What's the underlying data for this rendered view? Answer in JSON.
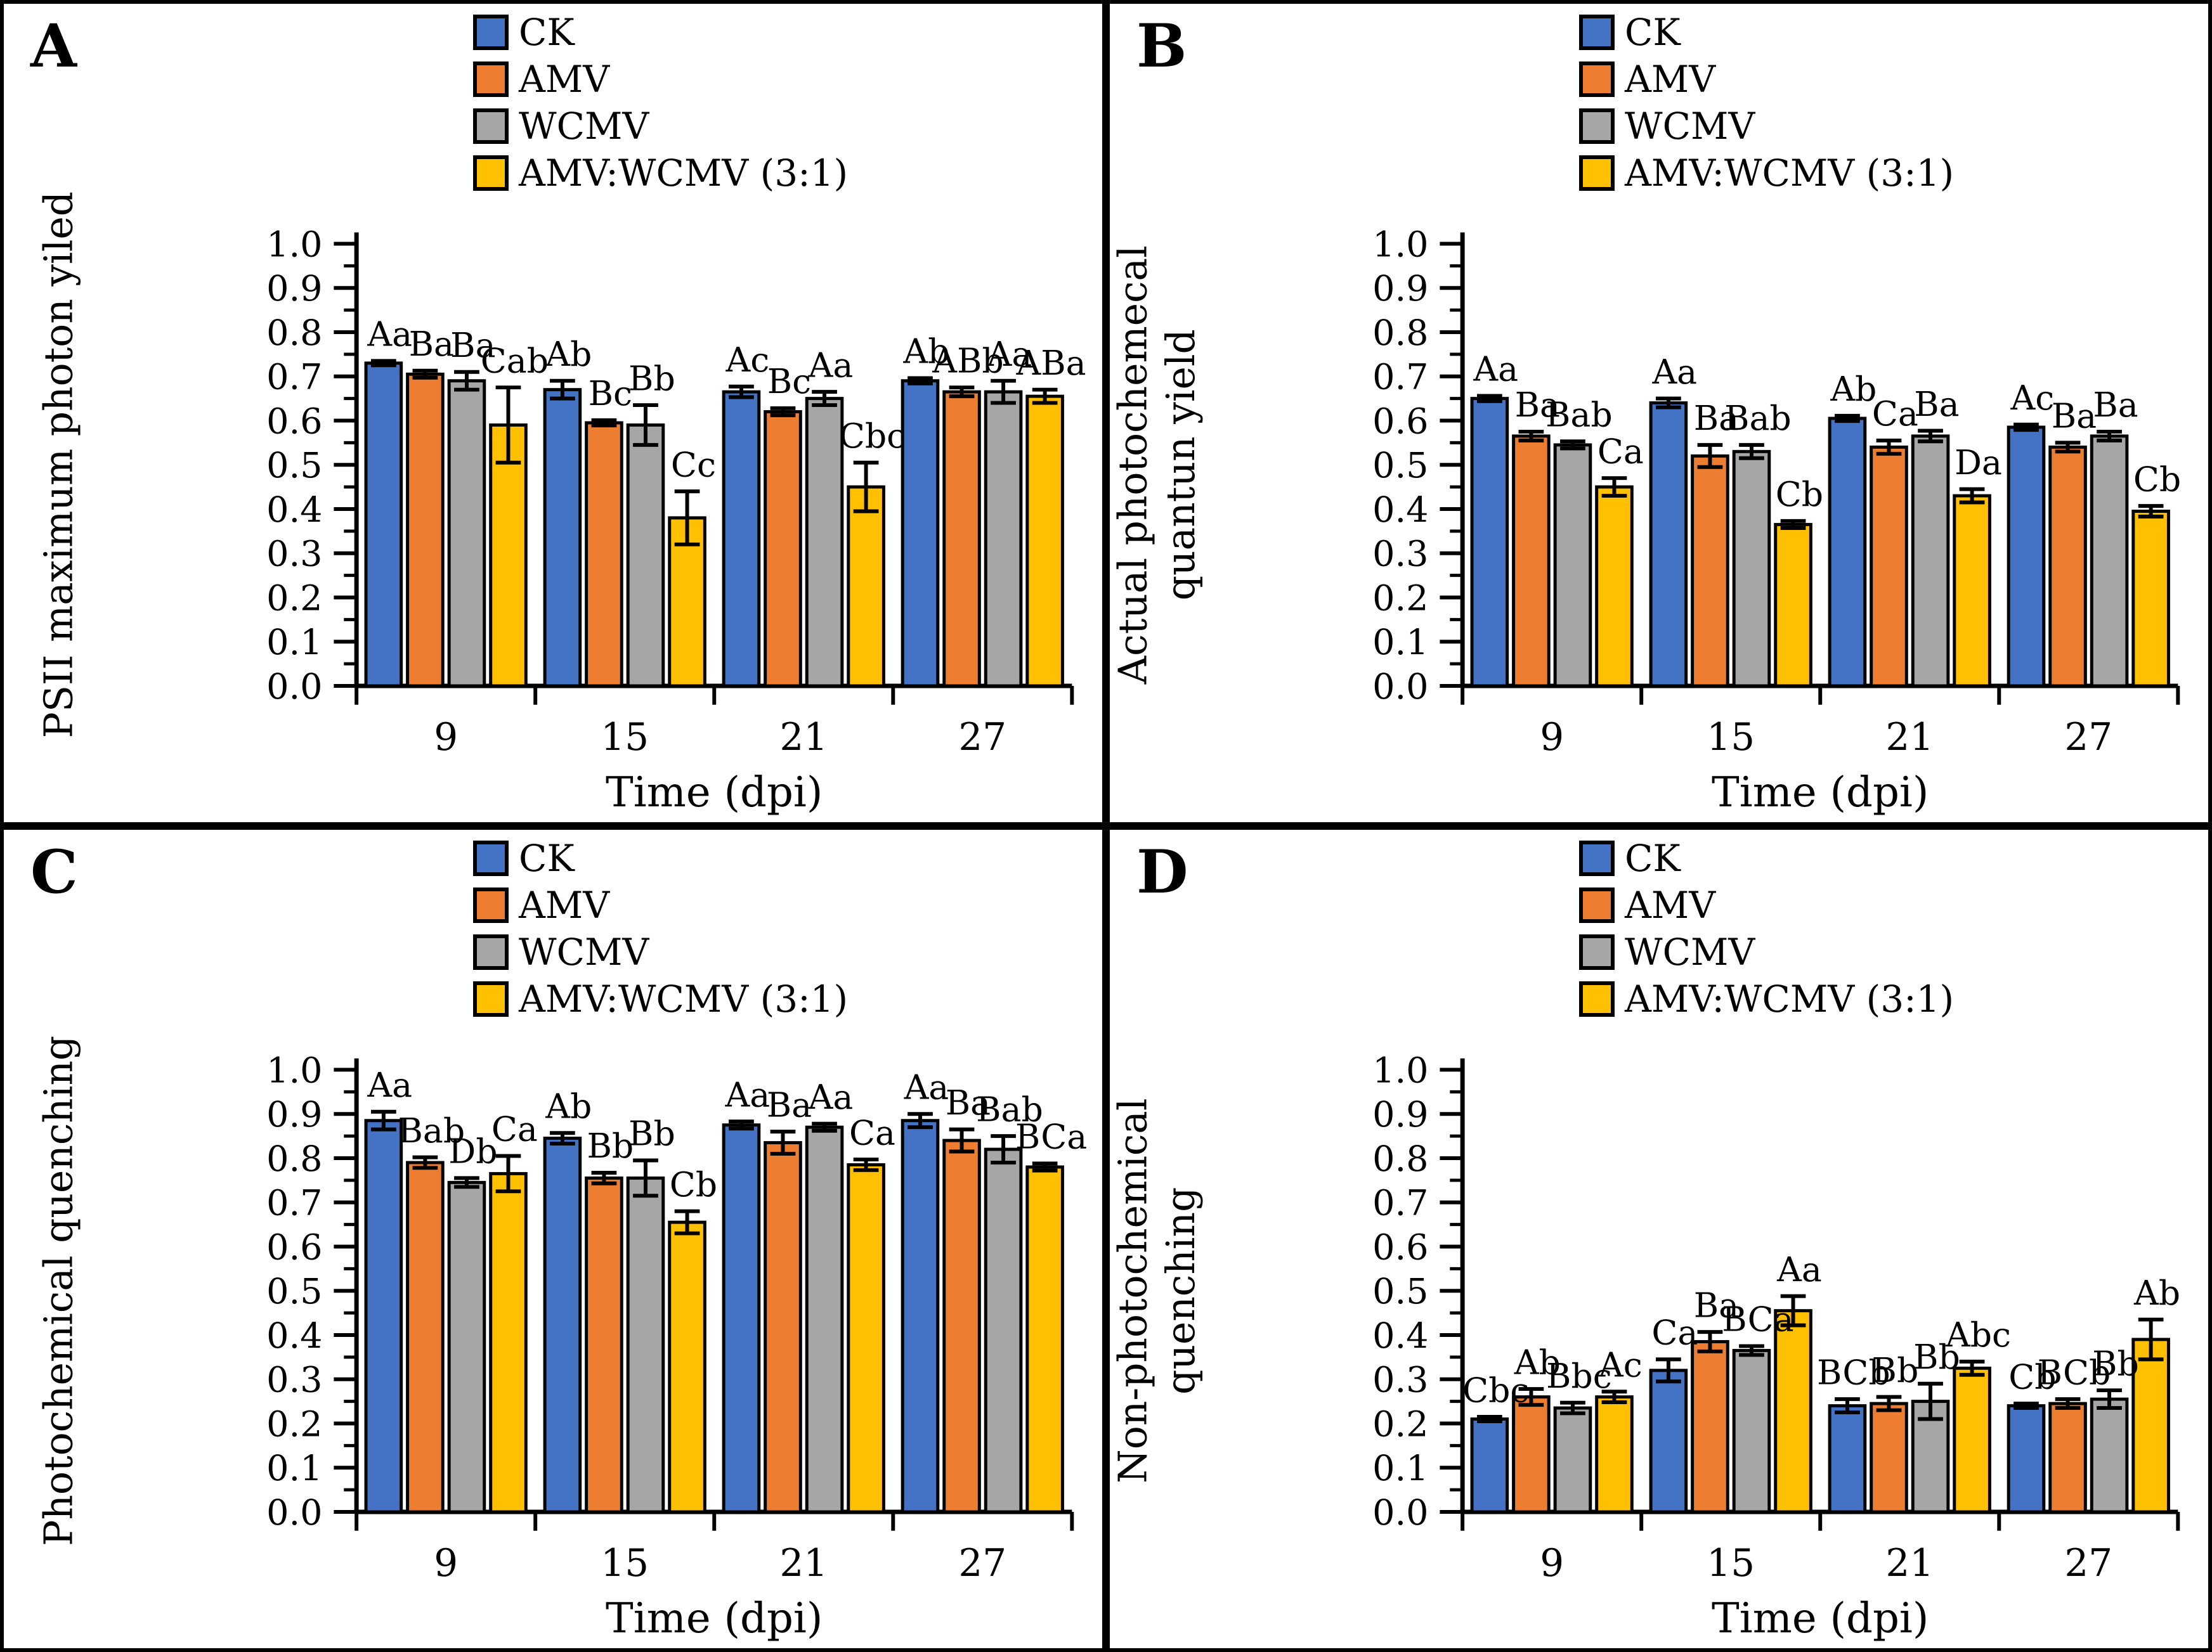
{
  "figure": {
    "x_axis_title": "Time (dpi)",
    "x_tick_labels": [
      "9",
      "15",
      "21",
      "27"
    ],
    "y_tick_labels": [
      "0.0",
      "0.1",
      "0.2",
      "0.3",
      "0.4",
      "0.5",
      "0.6",
      "0.7",
      "0.8",
      "0.9",
      "1.0"
    ],
    "legend": {
      "items": [
        {
          "label": "CK",
          "color": "#4472C4"
        },
        {
          "label": "AMV",
          "color": "#ED7D31"
        },
        {
          "label": "WCMV",
          "color": "#A6A6A6"
        },
        {
          "label": "AMV:WCMV (3:1)",
          "color": "#FFC000"
        }
      ]
    }
  },
  "chart_data": [
    {
      "type": "bar",
      "panel_letter": "A",
      "ylabel_lines": [
        "PSII maximum photon yiled"
      ],
      "xlabel": "Time (dpi)",
      "categories": [
        "9",
        "15",
        "21",
        "27"
      ],
      "ylim": [
        0.0,
        1.0
      ],
      "y_tick_step": 0.1,
      "grid": false,
      "legend_position": "top-center",
      "series": [
        {
          "name": "CK",
          "color": "#4472C4",
          "values": [
            0.73,
            0.67,
            0.665,
            0.69
          ],
          "errors": [
            0.005,
            0.02,
            0.012,
            0.006
          ],
          "sig_letters": [
            "Aa",
            "Ab",
            "Ac",
            "Ab"
          ]
        },
        {
          "name": "AMV",
          "color": "#ED7D31",
          "values": [
            0.705,
            0.595,
            0.62,
            0.665
          ],
          "errors": [
            0.008,
            0.006,
            0.008,
            0.01
          ],
          "sig_letters": [
            "Ba",
            "Bc",
            "Bc",
            "ABb"
          ]
        },
        {
          "name": "WCMV",
          "color": "#A6A6A6",
          "values": [
            0.69,
            0.59,
            0.65,
            0.665
          ],
          "errors": [
            0.02,
            0.045,
            0.015,
            0.025
          ],
          "sig_letters": [
            "Ba",
            "Bb",
            "Aa",
            "Aa"
          ]
        },
        {
          "name": "AMV:WCMV (3:1)",
          "color": "#FFC000",
          "values": [
            0.59,
            0.38,
            0.45,
            0.655
          ],
          "errors": [
            0.085,
            0.06,
            0.055,
            0.015
          ],
          "sig_letters": [
            "Cab",
            "Cc",
            "Cbc",
            "ABa"
          ]
        }
      ]
    },
    {
      "type": "bar",
      "panel_letter": "B",
      "ylabel_lines": [
        "Actual photochemecal",
        "quantun yield"
      ],
      "xlabel": "Time (dpi)",
      "categories": [
        "9",
        "15",
        "21",
        "27"
      ],
      "ylim": [
        0.0,
        1.0
      ],
      "y_tick_step": 0.1,
      "grid": false,
      "legend_position": "top-center",
      "series": [
        {
          "name": "CK",
          "color": "#4472C4",
          "values": [
            0.65,
            0.64,
            0.605,
            0.585
          ],
          "errors": [
            0.006,
            0.01,
            0.006,
            0.006
          ],
          "sig_letters": [
            "Aa",
            "Aa",
            "Ab",
            "Ac"
          ]
        },
        {
          "name": "AMV",
          "color": "#ED7D31",
          "values": [
            0.565,
            0.52,
            0.54,
            0.54
          ],
          "errors": [
            0.01,
            0.025,
            0.015,
            0.01
          ],
          "sig_letters": [
            "Ba",
            "Ba",
            "Ca",
            "Ba"
          ]
        },
        {
          "name": "WCMV",
          "color": "#A6A6A6",
          "values": [
            0.545,
            0.53,
            0.565,
            0.565
          ],
          "errors": [
            0.008,
            0.015,
            0.012,
            0.01
          ],
          "sig_letters": [
            "Bab",
            "Bab",
            "Ba",
            "Ba"
          ]
        },
        {
          "name": "AMV:WCMV (3:1)",
          "color": "#FFC000",
          "values": [
            0.45,
            0.365,
            0.43,
            0.395
          ],
          "errors": [
            0.02,
            0.008,
            0.015,
            0.012
          ],
          "sig_letters": [
            "Ca",
            "Cb",
            "Da",
            "Cb"
          ]
        }
      ]
    },
    {
      "type": "bar",
      "panel_letter": "C",
      "ylabel_lines": [
        "Photochemical quenching"
      ],
      "xlabel": "Time (dpi)",
      "categories": [
        "9",
        "15",
        "21",
        "27"
      ],
      "ylim": [
        0.0,
        1.0
      ],
      "y_tick_step": 0.1,
      "grid": false,
      "legend_position": "top-center",
      "series": [
        {
          "name": "CK",
          "color": "#4472C4",
          "values": [
            0.885,
            0.845,
            0.875,
            0.885
          ],
          "errors": [
            0.02,
            0.012,
            0.008,
            0.015
          ],
          "sig_letters": [
            "Aa",
            "Ab",
            "Aa",
            "Aa"
          ]
        },
        {
          "name": "AMV",
          "color": "#ED7D31",
          "values": [
            0.79,
            0.755,
            0.835,
            0.84
          ],
          "errors": [
            0.012,
            0.012,
            0.025,
            0.025
          ],
          "sig_letters": [
            "Bab",
            "Bb",
            "Ba",
            "Ba"
          ]
        },
        {
          "name": "WCMV",
          "color": "#A6A6A6",
          "values": [
            0.745,
            0.755,
            0.87,
            0.82
          ],
          "errors": [
            0.01,
            0.04,
            0.008,
            0.03
          ],
          "sig_letters": [
            "Db",
            "Bb",
            "Aa",
            "Bab"
          ]
        },
        {
          "name": "AMV:WCMV (3:1)",
          "color": "#FFC000",
          "values": [
            0.765,
            0.655,
            0.785,
            0.78
          ],
          "errors": [
            0.04,
            0.025,
            0.012,
            0.008
          ],
          "sig_letters": [
            "Ca",
            "Cb",
            "Ca",
            "BCa"
          ]
        }
      ]
    },
    {
      "type": "bar",
      "panel_letter": "D",
      "ylabel_lines": [
        "Non-photochemical",
        "quenching"
      ],
      "xlabel": "Time (dpi)",
      "categories": [
        "9",
        "15",
        "21",
        "27"
      ],
      "ylim": [
        0.0,
        1.0
      ],
      "y_tick_step": 0.1,
      "grid": false,
      "legend_position": "top-center",
      "series": [
        {
          "name": "CK",
          "color": "#4472C4",
          "values": [
            0.21,
            0.32,
            0.24,
            0.24
          ],
          "errors": [
            0.005,
            0.025,
            0.015,
            0.005
          ],
          "sig_letters": [
            "Cbc",
            "Ca",
            "BCb",
            "Cb"
          ]
        },
        {
          "name": "AMV",
          "color": "#ED7D31",
          "values": [
            0.26,
            0.385,
            0.245,
            0.245
          ],
          "errors": [
            0.018,
            0.022,
            0.015,
            0.01
          ],
          "sig_letters": [
            "Ab",
            "Ba",
            "Bb",
            "BCb"
          ]
        },
        {
          "name": "WCMV",
          "color": "#A6A6A6",
          "values": [
            0.235,
            0.365,
            0.25,
            0.255
          ],
          "errors": [
            0.012,
            0.01,
            0.04,
            0.02
          ],
          "sig_letters": [
            "Bbc",
            "BCa",
            "Bb",
            "Bb"
          ]
        },
        {
          "name": "AMV:WCMV (3:1)",
          "color": "#FFC000",
          "values": [
            0.26,
            0.455,
            0.325,
            0.39
          ],
          "errors": [
            0.012,
            0.033,
            0.015,
            0.045
          ],
          "sig_letters": [
            "Ac",
            "Aa",
            "Abc",
            "Ab"
          ]
        }
      ]
    }
  ]
}
